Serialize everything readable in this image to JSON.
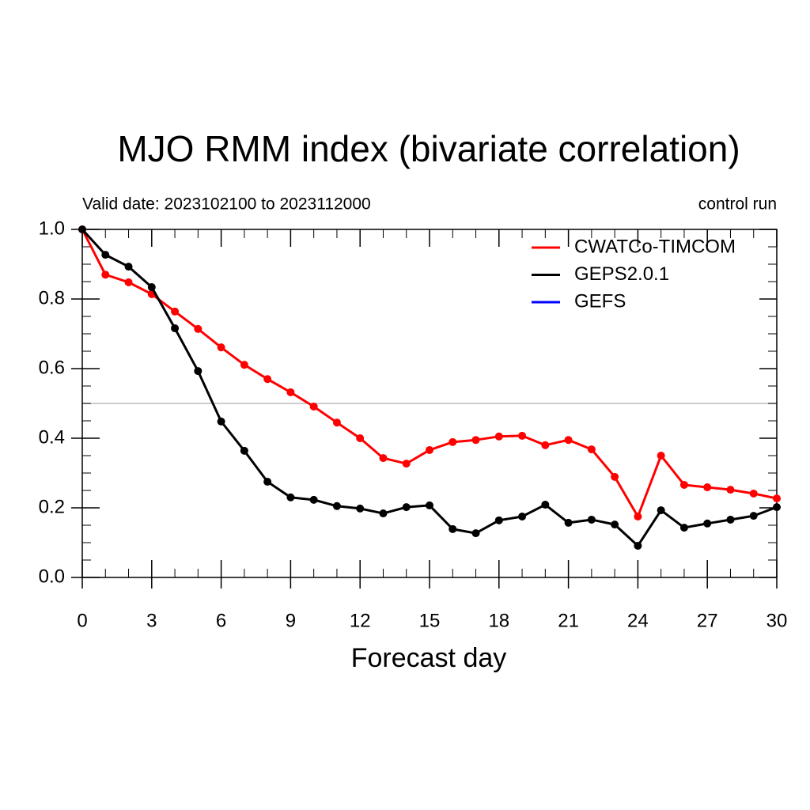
{
  "chart_data": {
    "type": "line",
    "title": "MJO RMM index (bivariate correlation)",
    "subtitle_left": "Valid date: 2023102100 to 2023112000",
    "subtitle_right": "control run",
    "x_label": "Forecast day",
    "x": [
      0,
      1,
      2,
      3,
      4,
      5,
      6,
      7,
      8,
      9,
      10,
      11,
      12,
      13,
      14,
      15,
      16,
      17,
      18,
      19,
      20,
      21,
      22,
      23,
      24,
      25,
      26,
      27,
      28,
      29,
      30
    ],
    "series": [
      {
        "name": "CWATCo-TIMCOM",
        "color": "#ff0000",
        "values": [
          1.0,
          0.87,
          0.848,
          0.814,
          0.764,
          0.714,
          0.661,
          0.611,
          0.57,
          0.532,
          0.491,
          0.445,
          0.4,
          0.343,
          0.327,
          0.366,
          0.389,
          0.395,
          0.405,
          0.407,
          0.38,
          0.395,
          0.368,
          0.289,
          0.175,
          0.35,
          0.266,
          0.259,
          0.252,
          0.241,
          0.227
        ]
      },
      {
        "name": "GEPS2.0.1",
        "color": "#000000",
        "values": [
          1.0,
          0.927,
          0.893,
          0.834,
          0.716,
          0.593,
          0.448,
          0.364,
          0.275,
          0.23,
          0.223,
          0.205,
          0.198,
          0.184,
          0.202,
          0.207,
          0.139,
          0.127,
          0.164,
          0.175,
          0.209,
          0.157,
          0.166,
          0.152,
          0.091,
          0.193,
          0.143,
          0.155,
          0.166,
          0.177,
          0.202
        ]
      },
      {
        "name": "GEFS",
        "color": "#0000ff",
        "values": [
          null,
          null,
          null,
          null,
          null,
          null,
          null,
          null,
          null,
          null,
          null,
          null,
          null,
          null,
          null,
          null,
          null,
          null,
          null,
          null,
          null,
          null,
          null,
          null,
          null,
          null,
          null,
          null,
          null,
          null,
          null
        ]
      }
    ],
    "xlim": [
      0,
      30
    ],
    "xticks": [
      0,
      3,
      6,
      9,
      12,
      15,
      18,
      21,
      24,
      27,
      30
    ],
    "xticks_minor": [
      1,
      2,
      4,
      5,
      7,
      8,
      10,
      11,
      13,
      14,
      16,
      17,
      19,
      20,
      22,
      23,
      25,
      26,
      28,
      29
    ],
    "ylim": [
      0,
      1
    ],
    "yticks": [
      {
        "value": 0,
        "label": "0.0"
      },
      {
        "value": 0.2,
        "label": "0.2"
      },
      {
        "value": 0.4,
        "label": "0.4"
      },
      {
        "value": 0.6,
        "label": "0.6"
      },
      {
        "value": 0.8,
        "label": "0.8"
      },
      {
        "value": 1,
        "label": "1.0"
      }
    ],
    "yticks_minor": [
      0.05,
      0.1,
      0.15,
      0.25,
      0.3,
      0.35,
      0.45,
      0.5,
      0.55,
      0.65,
      0.7,
      0.75,
      0.85,
      0.9,
      0.95
    ],
    "reference_line": 0.5,
    "reference_color": "#bbbbbb",
    "legend": "top-right"
  }
}
